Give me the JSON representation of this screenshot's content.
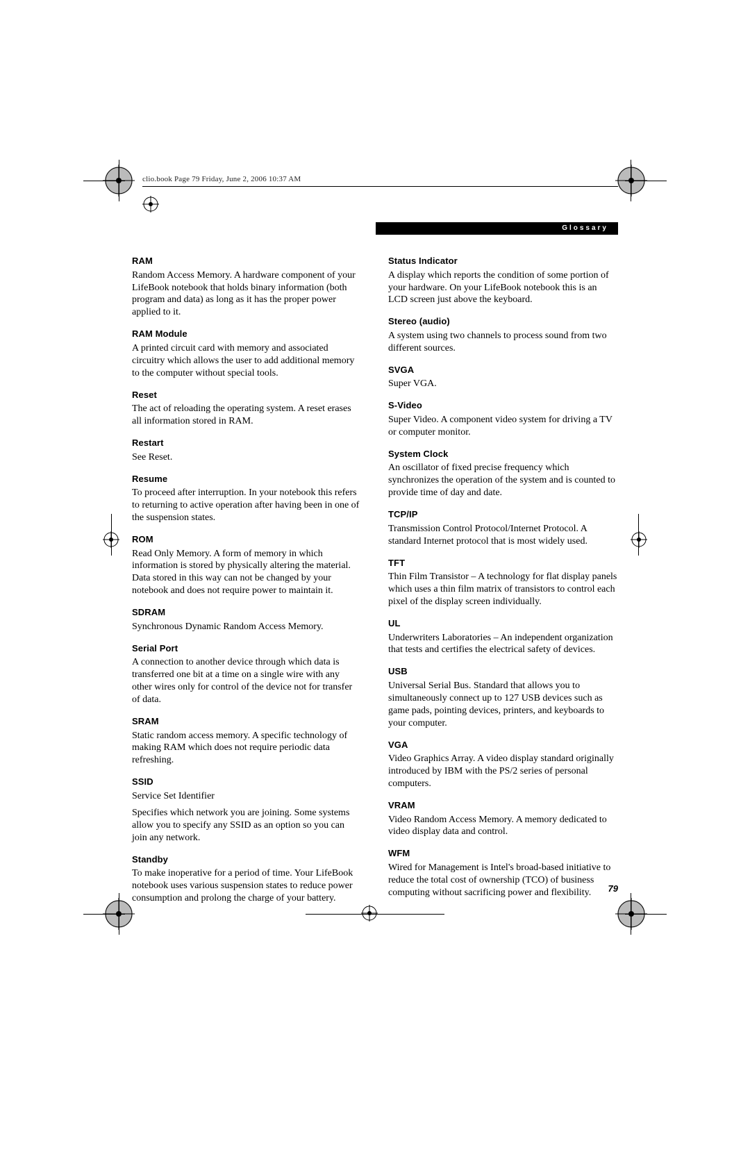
{
  "header_line": "clio.book  Page 79  Friday, June 2, 2006  10:37 AM",
  "section_title": "Glossary",
  "page_number": "79",
  "left_col": [
    {
      "term": "RAM",
      "def": [
        "Random Access Memory. A hardware component of your LifeBook notebook that holds binary information (both program and data) as long as it has the proper power applied to it."
      ]
    },
    {
      "term": "RAM Module",
      "def": [
        "A printed circuit card with memory and associated circuitry which allows the user to add additional memory to the computer without special tools."
      ]
    },
    {
      "term": "Reset",
      "def": [
        "The act of reloading the operating system. A reset erases all information stored in RAM."
      ]
    },
    {
      "term": "Restart",
      "def": [
        "See Reset."
      ]
    },
    {
      "term": "Resume",
      "def": [
        "To proceed after interruption. In your notebook this refers to returning to active operation after having been in one of the suspension states."
      ]
    },
    {
      "term": "ROM",
      "def": [
        "Read Only Memory. A form of memory in which information is stored by physically altering the material. Data stored in this way can not be changed by your notebook and does not require power to maintain it."
      ]
    },
    {
      "term": "SDRAM",
      "def": [
        "Synchronous Dynamic Random Access Memory."
      ]
    },
    {
      "term": "Serial Port",
      "def": [
        "A connection to another device through which data is transferred one bit at a time on a single wire with any other wires only for control of the device not for transfer of data."
      ]
    },
    {
      "term": "SRAM",
      "def": [
        "Static random access memory. A specific technology of making RAM which does not require periodic data refreshing."
      ]
    },
    {
      "term": "SSID",
      "def": [
        "Service Set Identifier",
        "Specifies which network you are joining. Some systems allow you to specify any SSID as an option so you can join any network."
      ]
    },
    {
      "term": "Standby",
      "def": [
        "To make inoperative for a period of time. Your LifeBook notebook uses various suspension states to reduce power consumption and prolong the charge of your battery."
      ]
    }
  ],
  "right_col": [
    {
      "term": "Status Indicator",
      "def": [
        "A display which reports the condition of some portion of your hardware. On your LifeBook notebook this is an LCD screen just above the keyboard."
      ]
    },
    {
      "term": "Stereo (audio)",
      "def": [
        "A system using two channels to process sound from two different sources."
      ]
    },
    {
      "term": "SVGA",
      "def": [
        "Super VGA."
      ]
    },
    {
      "term": "S-Video",
      "def": [
        "Super Video. A component video system for driving a TV or computer monitor."
      ]
    },
    {
      "term": "System Clock",
      "def": [
        "An oscillator of fixed precise frequency which synchronizes the operation of the system and is counted to provide time of day and date."
      ]
    },
    {
      "term": "TCP/IP",
      "def": [
        "Transmission Control Protocol/Internet Protocol. A standard Internet protocol that is most widely used."
      ]
    },
    {
      "term": "TFT",
      "def": [
        "Thin Film Transistor – A technology for flat display panels which uses a thin film matrix of transistors to control each pixel of the display screen individually."
      ]
    },
    {
      "term": "UL",
      "def": [
        "Underwriters Laboratories – An independent organization that tests and certifies the electrical safety of devices."
      ]
    },
    {
      "term": "USB",
      "def": [
        "Universal Serial Bus. Standard that allows you to simultaneously connect up to 127 USB devices such as game pads, pointing devices, printers, and keyboards to your computer."
      ]
    },
    {
      "term": "VGA",
      "def": [
        "Video Graphics Array. A video display standard originally introduced by IBM with the PS/2 series of personal computers."
      ]
    },
    {
      "term": "VRAM",
      "def": [
        "Video Random Access Memory. A memory dedicated to video display data and control."
      ]
    },
    {
      "term": "WFM",
      "def": [
        "Wired for Management is Intel's broad-based initiative to reduce the total cost of ownership (TCO) of business computing without sacrificing power and flexibility."
      ]
    }
  ]
}
